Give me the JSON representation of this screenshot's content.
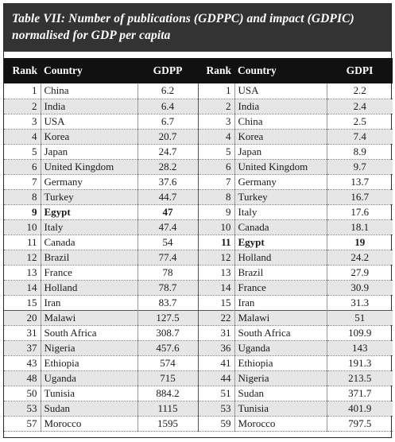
{
  "title": "Table VII: Number of publications (GDPPC) and impact (GDPIC) normalised for GDP per capita",
  "headers": {
    "rank_left": "Rank",
    "country_left": "Country",
    "value_left": "GDPP",
    "rank_right": "Rank",
    "country_right": "Country",
    "value_right": "GDPI"
  },
  "rows": [
    {
      "lr": "1",
      "lc": "China",
      "lv": "6.2",
      "rr": "1",
      "rc": "USA",
      "rv": "2.2"
    },
    {
      "lr": "2",
      "lc": "India",
      "lv": "6.4",
      "rr": "2",
      "rc": "India",
      "rv": "2.4"
    },
    {
      "lr": "3",
      "lc": "USA",
      "lv": "6.7",
      "rr": "3",
      "rc": "China",
      "rv": "2.5"
    },
    {
      "lr": "4",
      "lc": "Korea",
      "lv": "20.7",
      "rr": "4",
      "rc": "Korea",
      "rv": "7.4"
    },
    {
      "lr": "5",
      "lc": "Japan",
      "lv": "24.7",
      "rr": "5",
      "rc": "Japan",
      "rv": "8.9"
    },
    {
      "lr": "6",
      "lc": "United Kingdom",
      "lv": "28.2",
      "rr": "6",
      "rc": "United Kingdom",
      "rv": "9.7"
    },
    {
      "lr": "7",
      "lc": "Germany",
      "lv": "37.6",
      "rr": "7",
      "rc": "Germany",
      "rv": "13.7"
    },
    {
      "lr": "8",
      "lc": "Turkey",
      "lv": "44.7",
      "rr": "8",
      "rc": "Turkey",
      "rv": "16.7"
    },
    {
      "lr": "9",
      "lc": "Egypt",
      "lv": "47",
      "rr": "9",
      "rc": "Italy",
      "rv": "17.6",
      "lbold": true
    },
    {
      "lr": "10",
      "lc": "Italy",
      "lv": "47.4",
      "rr": "10",
      "rc": "Canada",
      "rv": "18.1"
    },
    {
      "lr": "11",
      "lc": "Canada",
      "lv": "54",
      "rr": "11",
      "rc": "Egypt",
      "rv": "19",
      "rbold": true
    },
    {
      "lr": "12",
      "lc": "Brazil",
      "lv": "77.4",
      "rr": "12",
      "rc": "Holland",
      "rv": "24.2"
    },
    {
      "lr": "13",
      "lc": "France",
      "lv": "78",
      "rr": "13",
      "rc": "Brazil",
      "rv": "27.9"
    },
    {
      "lr": "14",
      "lc": "Holland",
      "lv": "78.7",
      "rr": "14",
      "rc": "France",
      "rv": "30.9"
    },
    {
      "lr": "15",
      "lc": "Iran",
      "lv": "83.7",
      "rr": "15",
      "rc": "Iran",
      "rv": "31.3"
    },
    {
      "lr": "20",
      "lc": "Malawi",
      "lv": "127.5",
      "rr": "22",
      "rc": "Malawi",
      "rv": "51"
    },
    {
      "lr": "31",
      "lc": "South Africa",
      "lv": "308.7",
      "rr": "31",
      "rc": "South Africa",
      "rv": "109.9"
    },
    {
      "lr": "37",
      "lc": "Nigeria",
      "lv": "457.6",
      "rr": "36",
      "rc": "Uganda",
      "rv": "143"
    },
    {
      "lr": "43",
      "lc": "Ethiopia",
      "lv": "574",
      "rr": "41",
      "rc": "Ethiopia",
      "rv": "191.3"
    },
    {
      "lr": "48",
      "lc": "Uganda",
      "lv": "715",
      "rr": "44",
      "rc": "Nigeria",
      "rv": "213.5"
    },
    {
      "lr": "50",
      "lc": "Tunisia",
      "lv": "884.2",
      "rr": "51",
      "rc": "Sudan",
      "rv": "371.7"
    },
    {
      "lr": "53",
      "lc": "Sudan",
      "lv": "1115",
      "rr": "53",
      "rc": "Tunisia",
      "rv": "401.9"
    },
    {
      "lr": "57",
      "lc": "Morocco",
      "lv": "1595",
      "rr": "59",
      "rc": "Morocco",
      "rv": "797.5"
    }
  ]
}
